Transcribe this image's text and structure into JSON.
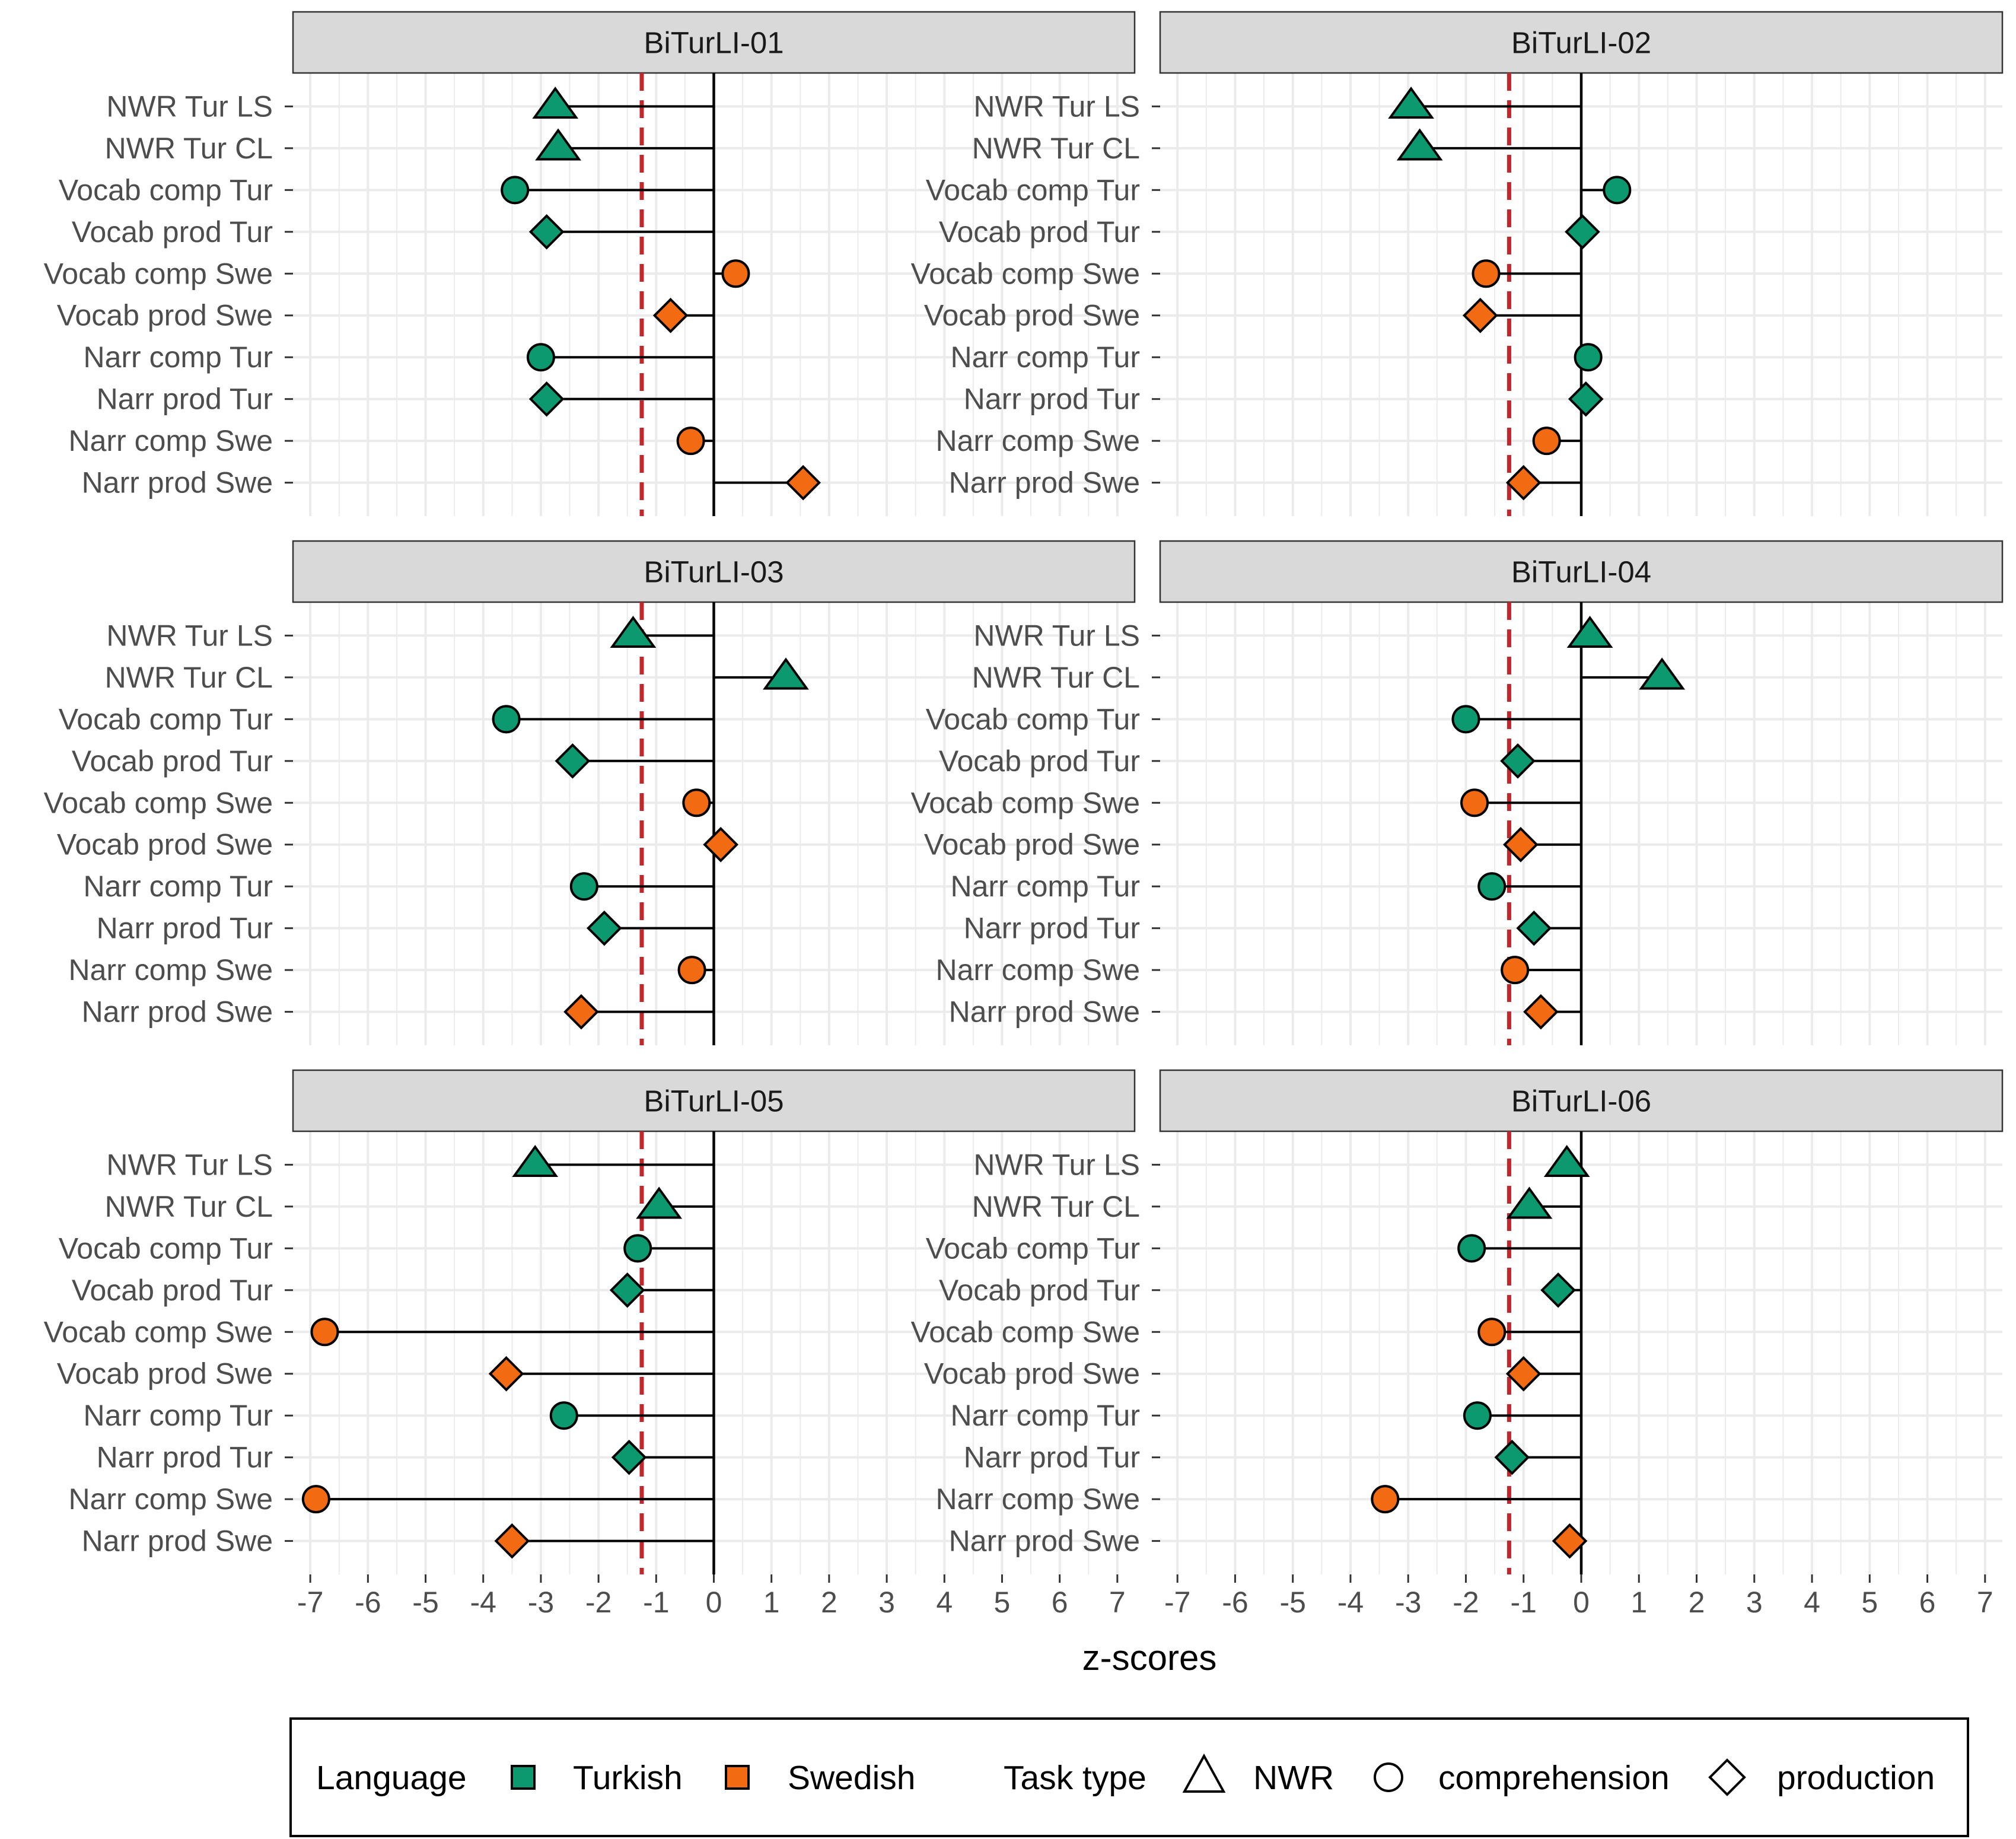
{
  "chart_data": {
    "type": "lollipop",
    "xlabel": "z-scores",
    "xlim": [
      -7.3,
      7.3
    ],
    "xticks": [
      -7,
      -6,
      -5,
      -4,
      -3,
      -2,
      -1,
      0,
      1,
      2,
      3,
      4,
      5,
      6,
      7
    ],
    "xtick_labels": [
      "-7",
      "-6",
      "-5",
      "-4",
      "-3",
      "-2",
      "-1",
      "0",
      "1",
      "2",
      "3",
      "4",
      "5",
      "6",
      "7"
    ],
    "reference_line": -1.25,
    "categories": [
      "NWR Tur LS",
      "NWR Tur CL",
      "Vocab comp Tur",
      "Vocab prod Tur",
      "Vocab comp Swe",
      "Vocab prod Swe",
      "Narr comp Tur",
      "Narr prod Tur",
      "Narr comp Swe",
      "Narr prod Swe"
    ],
    "category_language": [
      "Turkish",
      "Turkish",
      "Turkish",
      "Turkish",
      "Swedish",
      "Swedish",
      "Turkish",
      "Turkish",
      "Swedish",
      "Swedish"
    ],
    "category_task": [
      "NWR",
      "NWR",
      "comprehension",
      "production",
      "comprehension",
      "production",
      "comprehension",
      "production",
      "comprehension",
      "production"
    ],
    "colors": {
      "Turkish": "#0d9970",
      "Swedish": "#f26a12"
    },
    "panels": [
      {
        "title": "BiTurLI-01",
        "values": [
          -2.75,
          -2.7,
          -3.45,
          -2.9,
          0.38,
          -0.75,
          -3.0,
          -2.9,
          -0.4,
          1.55
        ]
      },
      {
        "title": "BiTurLI-02",
        "values": [
          -2.95,
          -2.8,
          0.62,
          0.02,
          -1.65,
          -1.75,
          0.12,
          0.08,
          -0.6,
          -1.0
        ]
      },
      {
        "title": "BiTurLI-03",
        "values": [
          -1.4,
          1.25,
          -3.6,
          -2.45,
          -0.3,
          0.12,
          -2.25,
          -1.9,
          -0.38,
          -2.3
        ]
      },
      {
        "title": "BiTurLI-04",
        "values": [
          0.15,
          1.4,
          -2.0,
          -1.1,
          -1.85,
          -1.05,
          -1.55,
          -0.82,
          -1.15,
          -0.7
        ]
      },
      {
        "title": "BiTurLI-05",
        "values": [
          -3.1,
          -0.95,
          -1.32,
          -1.5,
          -6.75,
          -3.6,
          -2.6,
          -1.47,
          -6.9,
          -3.5
        ]
      },
      {
        "title": "BiTurLI-06",
        "values": [
          -0.25,
          -0.9,
          -1.9,
          -0.4,
          -1.55,
          -1.0,
          -1.8,
          -1.2,
          -3.4,
          -0.2
        ]
      }
    ],
    "legend": {
      "language_title": "Language",
      "language_items": [
        "Turkish",
        "Swedish"
      ],
      "task_title": "Task type",
      "task_items": [
        "NWR",
        "comprehension",
        "production"
      ],
      "position": "bottom"
    }
  }
}
